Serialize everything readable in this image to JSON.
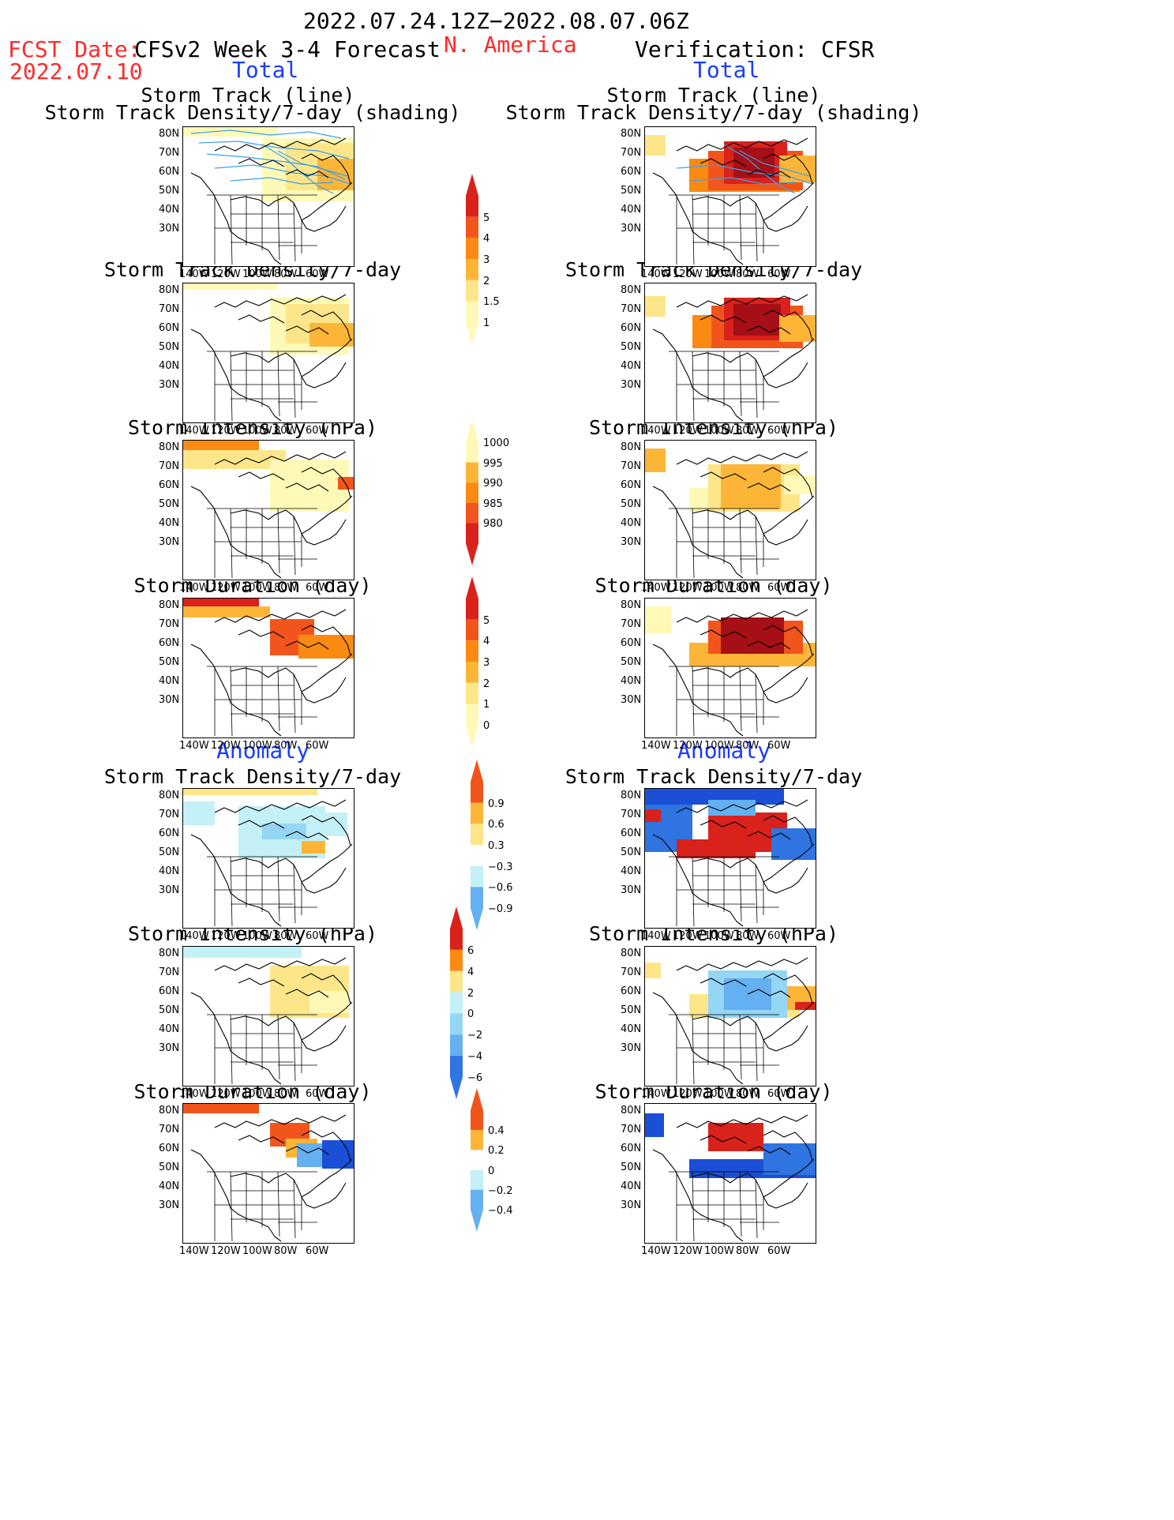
{
  "header": {
    "date_range": "2022.07.24.12Z−2022.08.07.06Z",
    "fcst_label": "FCST Date:",
    "fcst_date": "2022.07.10",
    "left_title": "CFSv2 Week 3-4 Forecast",
    "region": "N. America",
    "right_title": "Verification: CFSR"
  },
  "sections": {
    "total": "Total",
    "anomaly": "Anomaly"
  },
  "panel_titles": {
    "track_line": "Storm Track (line)",
    "track_density_shading": "Storm Track Density/7-day (shading)",
    "track_density": "Storm Track Density/7-day",
    "intensity": "Storm Intensity (hPa)",
    "duration": "Storm Duration (day)"
  },
  "axes": {
    "lat_ticks": [
      "80N",
      "70N",
      "60N",
      "50N",
      "40N",
      "30N"
    ],
    "lon_ticks": [
      "140W",
      "120W",
      "100W",
      "80W",
      "60W"
    ]
  },
  "colorbars": {
    "total_density": {
      "labels": [
        "5",
        "4",
        "3",
        "2",
        "1.5",
        "1"
      ]
    },
    "total_intensity": {
      "labels": [
        "1000",
        "995",
        "990",
        "985",
        "980"
      ]
    },
    "total_duration": {
      "labels": [
        "5",
        "4",
        "3",
        "2",
        "1",
        "0"
      ]
    },
    "anom_density": {
      "labels": [
        "0.9",
        "0.6",
        "0.3",
        "−0.3",
        "−0.6",
        "−0.9"
      ]
    },
    "anom_intensity": {
      "labels": [
        "6",
        "4",
        "2",
        "0",
        "−2",
        "−4",
        "−6"
      ]
    },
    "anom_duration": {
      "labels": [
        "0.4",
        "0.2",
        "0",
        "−0.2",
        "−0.4"
      ]
    }
  },
  "colors": {
    "warm": [
      "#fff9b8",
      "#fde68a",
      "#fdb538",
      "#fb8a12",
      "#f2551c",
      "#d9221c",
      "#a50f15"
    ],
    "cool": [
      "#ffffff",
      "#c4f0f8",
      "#94d6f4",
      "#64b0f0",
      "#2f74e0",
      "#1a4fd6"
    ],
    "track_line": "#3aa0ef",
    "title_red": "#ff2a2a",
    "title_blue": "#1a3cff"
  }
}
